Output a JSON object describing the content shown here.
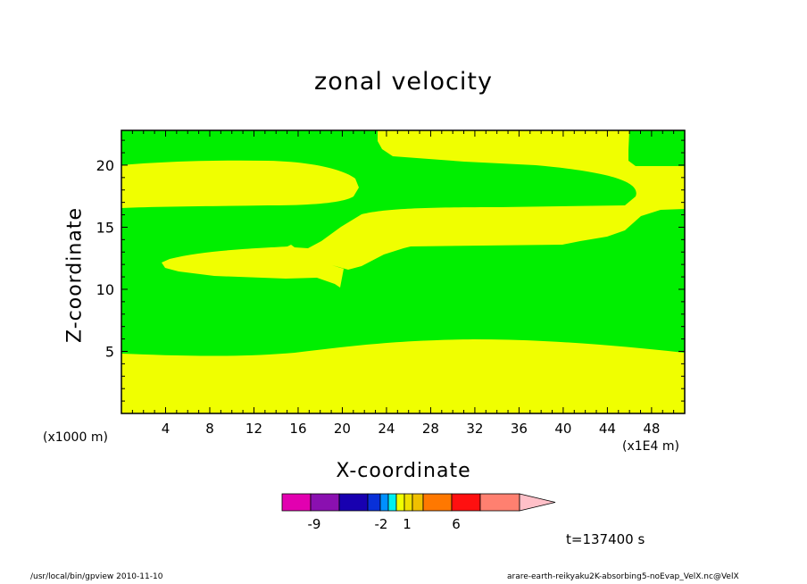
{
  "chart_data": {
    "type": "heatmap",
    "title": "zonal velocity",
    "xlabel": "X-coordinate",
    "ylabel": "Z-coordinate",
    "x_unit_label": "(x1E4 m)",
    "z_unit_label": "(x1000 m)",
    "xlim": [
      0,
      51
    ],
    "ylim": [
      0,
      22.8
    ],
    "x_ticks": [
      4,
      8,
      12,
      16,
      20,
      24,
      28,
      32,
      36,
      40,
      44,
      48
    ],
    "y_ticks": [
      5,
      10,
      15,
      20
    ],
    "colors": {
      "positive_band": "#f0ff00",
      "background": "#00ef00"
    },
    "regions": [
      {
        "name": "lower yellow band",
        "value_range": "1 to 2",
        "z_top_at_x": [
          [
            0,
            4.9
          ],
          [
            8,
            4.7
          ],
          [
            16,
            4.9
          ],
          [
            24,
            5.7
          ],
          [
            32,
            6.0
          ],
          [
            40,
            5.6
          ],
          [
            51,
            4.8
          ]
        ]
      },
      {
        "name": "middle yellow band",
        "value_range": "1 to 2",
        "x_extent": [
          3.6,
          51
        ],
        "z_extent": [
          10.3,
          16.6
        ]
      },
      {
        "name": "upper left yellow band",
        "value_range": "1 to 2",
        "x_extent": [
          0,
          21.2
        ],
        "z_extent": [
          16.6,
          20.5
        ]
      },
      {
        "name": "upper right yellow band",
        "value_range": "1 to 2",
        "x_extent": [
          23,
          51
        ],
        "z_extent": [
          17.3,
          22.8
        ]
      }
    ],
    "colorbar": {
      "colors": [
        "#e200b0",
        "#8a10b0",
        "#1800b0",
        "#0830d8",
        "#0090ff",
        "#00f0f0",
        "#f0ff00",
        "#f0e000",
        "#f0c000",
        "#ff7800",
        "#ff1010",
        "#ff8070",
        "#ffc0c8"
      ],
      "labels": [
        "-9",
        "-2",
        "1",
        "6"
      ]
    }
  },
  "time_label": "t=137400 s",
  "footer": {
    "left": "/usr/local/bin/gpview   2010-11-10",
    "right": "arare-earth-reikyaku2K-absorbing5-noEvap_VelX.nc@VelX"
  }
}
